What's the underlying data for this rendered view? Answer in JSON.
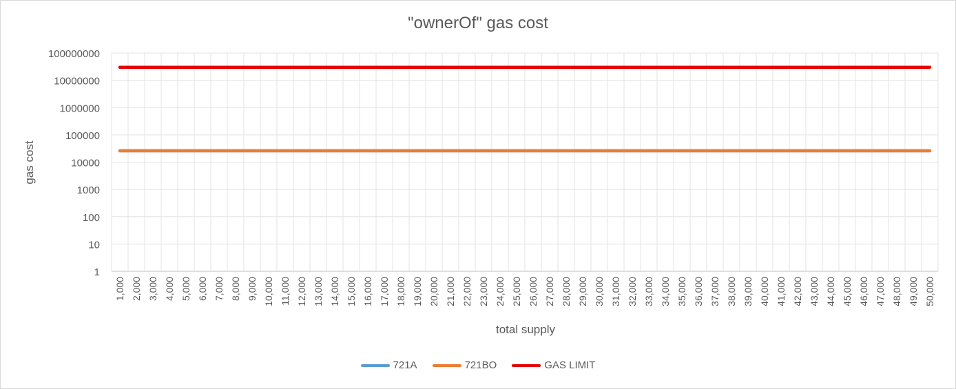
{
  "chart_data": {
    "type": "line",
    "title": "\"ownerOf\" gas cost",
    "xlabel": "total supply",
    "ylabel": "gas cost",
    "y_scale": "log",
    "ylim": [
      1,
      100000000
    ],
    "y_ticks": [
      "1",
      "10",
      "100",
      "1000",
      "10000",
      "100000",
      "1000000",
      "10000000",
      "100000000"
    ],
    "grid": true,
    "legend_position": "bottom",
    "categories": [
      "1,000",
      "2,000",
      "3,000",
      "4,000",
      "5,000",
      "6,000",
      "7,000",
      "8,000",
      "9,000",
      "10,000",
      "11,000",
      "12,000",
      "13,000",
      "14,000",
      "15,000",
      "16,000",
      "17,000",
      "18,000",
      "19,000",
      "20,000",
      "21,000",
      "22,000",
      "23,000",
      "24,000",
      "25,000",
      "26,000",
      "27,000",
      "28,000",
      "29,000",
      "30,000",
      "31,000",
      "32,000",
      "33,000",
      "34,000",
      "35,000",
      "36,000",
      "37,000",
      "38,000",
      "39,000",
      "40,000",
      "41,000",
      "42,000",
      "43,000",
      "44,000",
      "45,000",
      "46,000",
      "47,000",
      "48,000",
      "49,000",
      "50,000"
    ],
    "series": [
      {
        "name": "721A",
        "color": "#5b9bd5",
        "values": [
          26000,
          26000,
          26000,
          26000,
          26000,
          26000,
          26000,
          26000,
          26000,
          26000,
          26000,
          26000,
          26000,
          26000,
          26000,
          26000,
          26000,
          26000,
          26000,
          26000,
          26000,
          26000,
          26000,
          26000,
          26000,
          26000,
          26000,
          26000,
          26000,
          26000,
          26000,
          26000,
          26000,
          26000,
          26000,
          26000,
          26000,
          26000,
          26000,
          26000,
          26000,
          26000,
          26000,
          26000,
          26000,
          26000,
          26000,
          26000,
          26000,
          26000
        ]
      },
      {
        "name": "721BO",
        "color": "#ed7d31",
        "values": [
          26000,
          26000,
          26000,
          26000,
          26000,
          26000,
          26000,
          26000,
          26000,
          26000,
          26000,
          26000,
          26000,
          26000,
          26000,
          26000,
          26000,
          26000,
          26000,
          26000,
          26000,
          26000,
          26000,
          26000,
          26000,
          26000,
          26000,
          26000,
          26000,
          26000,
          26000,
          26000,
          26000,
          26000,
          26000,
          26000,
          26000,
          26000,
          26000,
          26000,
          26000,
          26000,
          26000,
          26000,
          26000,
          26000,
          26000,
          26000,
          26000,
          26000
        ]
      },
      {
        "name": "GAS LIMIT",
        "color": "#e60000",
        "values": [
          30000000,
          30000000,
          30000000,
          30000000,
          30000000,
          30000000,
          30000000,
          30000000,
          30000000,
          30000000,
          30000000,
          30000000,
          30000000,
          30000000,
          30000000,
          30000000,
          30000000,
          30000000,
          30000000,
          30000000,
          30000000,
          30000000,
          30000000,
          30000000,
          30000000,
          30000000,
          30000000,
          30000000,
          30000000,
          30000000,
          30000000,
          30000000,
          30000000,
          30000000,
          30000000,
          30000000,
          30000000,
          30000000,
          30000000,
          30000000,
          30000000,
          30000000,
          30000000,
          30000000,
          30000000,
          30000000,
          30000000,
          30000000,
          30000000,
          30000000
        ]
      }
    ]
  }
}
